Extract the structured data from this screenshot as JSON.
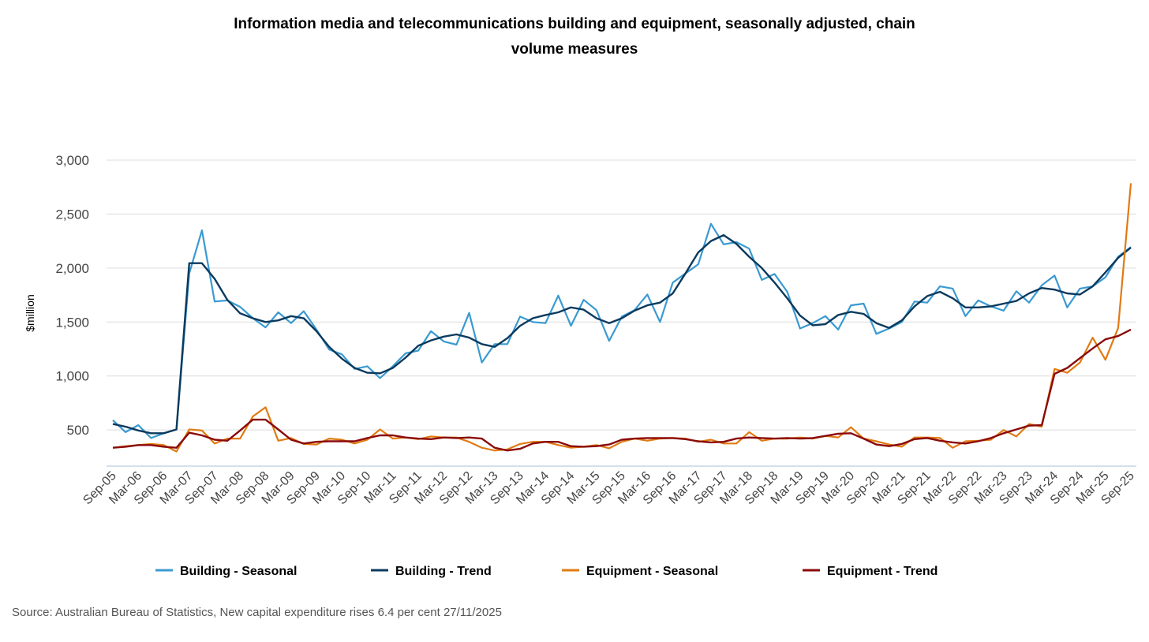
{
  "chart_data": {
    "type": "line",
    "title_lines": [
      "Information media and telecommunications building and equipment, seasonally adjusted, chain",
      "volume measures"
    ],
    "xlabel": "",
    "ylabel": "$million",
    "ylim": [
      165,
      3000
    ],
    "yticks": [
      500,
      1000,
      1500,
      2000,
      2500,
      3000
    ],
    "ytick_labels": [
      "500",
      "1,000",
      "1,500",
      "2,000",
      "2,500",
      "3,000"
    ],
    "grid": true,
    "legend_position": "bottom",
    "x_tick_labels": [
      "Sep-05",
      "Mar-06",
      "Sep-06",
      "Mar-07",
      "Sep-07",
      "Mar-08",
      "Sep-08",
      "Mar-09",
      "Sep-09",
      "Mar-10",
      "Sep-10",
      "Mar-11",
      "Sep-11",
      "Mar-12",
      "Sep-12",
      "Mar-13",
      "Sep-13",
      "Mar-14",
      "Sep-14",
      "Mar-15",
      "Sep-15",
      "Mar-16",
      "Sep-16",
      "Mar-17",
      "Sep-17",
      "Mar-18",
      "Sep-18",
      "Mar-19",
      "Sep-19",
      "Mar-20",
      "Sep-20",
      "Mar-21",
      "Sep-21",
      "Mar-22",
      "Sep-22",
      "Mar-23",
      "Sep-23",
      "Mar-24",
      "Sep-24",
      "Mar-25",
      "Sep-25"
    ],
    "x_note": "quarterly from Sep-05 to Sep-25 (81 points); tick labels every second quarter",
    "series": [
      {
        "name": "Building - Seasonal",
        "color": "#3a9ad1",
        "width": 2.2,
        "values": [
          590,
          480,
          545,
          425,
          470,
          505,
          1950,
          2350,
          1690,
          1700,
          1640,
          1535,
          1450,
          1590,
          1490,
          1600,
          1430,
          1245,
          1200,
          1065,
          1090,
          980,
          1090,
          1210,
          1235,
          1415,
          1320,
          1290,
          1585,
          1125,
          1295,
          1295,
          1550,
          1500,
          1490,
          1745,
          1465,
          1705,
          1610,
          1325,
          1550,
          1610,
          1755,
          1500,
          1865,
          1950,
          2035,
          2410,
          2220,
          2240,
          2180,
          1890,
          1945,
          1780,
          1440,
          1490,
          1555,
          1430,
          1655,
          1670,
          1390,
          1440,
          1500,
          1690,
          1680,
          1830,
          1810,
          1555,
          1700,
          1645,
          1605,
          1785,
          1680,
          1840,
          1930,
          1635,
          1810,
          1830,
          1915,
          2105,
          2195
        ]
      },
      {
        "name": "Building - Trend",
        "color": "#0b3a5e",
        "width": 2.4,
        "values": [
          555,
          530,
          495,
          470,
          470,
          505,
          2045,
          2045,
          1900,
          1705,
          1580,
          1535,
          1500,
          1515,
          1555,
          1535,
          1415,
          1270,
          1160,
          1075,
          1030,
          1025,
          1075,
          1170,
          1280,
          1330,
          1365,
          1385,
          1355,
          1295,
          1270,
          1350,
          1465,
          1535,
          1565,
          1590,
          1635,
          1615,
          1535,
          1490,
          1535,
          1605,
          1655,
          1680,
          1765,
          1950,
          2145,
          2250,
          2305,
          2225,
          2105,
          2000,
          1865,
          1720,
          1560,
          1470,
          1480,
          1565,
          1595,
          1575,
          1490,
          1445,
          1515,
          1645,
          1740,
          1780,
          1720,
          1635,
          1635,
          1645,
          1670,
          1695,
          1765,
          1815,
          1800,
          1765,
          1755,
          1830,
          1960,
          2095,
          2190
        ]
      },
      {
        "name": "Equipment - Seasonal",
        "color": "#e07b12",
        "width": 2.2,
        "values": [
          335,
          350,
          360,
          370,
          360,
          300,
          505,
          495,
          375,
          420,
          420,
          625,
          710,
          400,
          425,
          370,
          365,
          420,
          410,
          375,
          410,
          505,
          420,
          430,
          415,
          440,
          430,
          430,
          390,
          335,
          310,
          320,
          370,
          390,
          390,
          360,
          335,
          345,
          360,
          330,
          390,
          420,
          400,
          420,
          425,
          420,
          390,
          410,
          375,
          375,
          480,
          400,
          420,
          420,
          430,
          420,
          445,
          430,
          525,
          420,
          395,
          365,
          345,
          430,
          430,
          425,
          335,
          395,
          400,
          410,
          500,
          440,
          555,
          530,
          1065,
          1030,
          1125,
          1355,
          1150,
          1445,
          2785
        ]
      },
      {
        "name": "Equipment - Trend",
        "color": "#8b0a0a",
        "width": 2.4,
        "values": [
          335,
          345,
          360,
          360,
          345,
          335,
          475,
          450,
          410,
          400,
          495,
          595,
          595,
          505,
          410,
          375,
          390,
          395,
          395,
          395,
          425,
          450,
          450,
          430,
          420,
          415,
          430,
          425,
          430,
          420,
          335,
          310,
          325,
          375,
          390,
          390,
          350,
          345,
          350,
          365,
          410,
          420,
          425,
          425,
          425,
          415,
          395,
          385,
          390,
          420,
          430,
          425,
          420,
          425,
          420,
          425,
          445,
          465,
          470,
          420,
          365,
          350,
          370,
          415,
          425,
          400,
          385,
          375,
          395,
          425,
          470,
          505,
          540,
          545,
          1020,
          1075,
          1165,
          1255,
          1340,
          1370,
          1430
        ]
      }
    ]
  },
  "source": "Source: Australian Bureau of Statistics, New capital expenditure rises 6.4 per cent 27/11/2025"
}
